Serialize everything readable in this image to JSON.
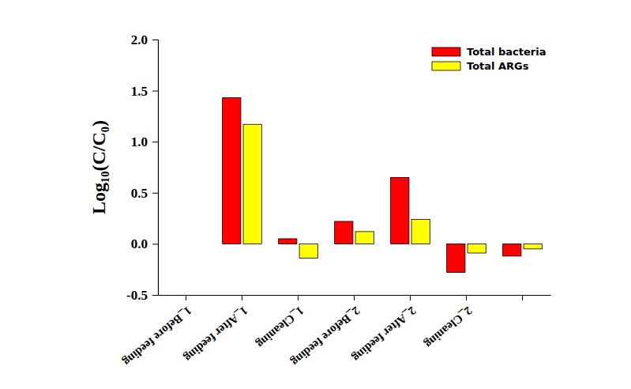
{
  "chart_data": {
    "type": "bar",
    "y_label": "Log₁₀(C/C₀)",
    "categories": [
      "1_Before feeding",
      "1_After feeding",
      "1_Cleaning",
      "2_Before feeding",
      "2_After feeding",
      "2_Cleaning",
      null
    ],
    "series": [
      {
        "name": "Total bacteria",
        "color": "#ff0000",
        "values": [
          null,
          1.43,
          0.05,
          0.22,
          0.65,
          -0.28,
          -0.12
        ]
      },
      {
        "name": "Total ARGs",
        "color": "#ffff00",
        "values": [
          null,
          1.17,
          -0.14,
          0.12,
          0.24,
          -0.09,
          -0.05
        ]
      }
    ],
    "ylim": [
      -0.5,
      2.0
    ],
    "yticks": [
      -0.5,
      {
        "value": 0,
        "label": "0.0"
      },
      0.5,
      {
        "value": 1,
        "label": "1.0"
      },
      1.5,
      {
        "value": 2,
        "label": "2.0"
      }
    ],
    "legend": "upper right"
  }
}
